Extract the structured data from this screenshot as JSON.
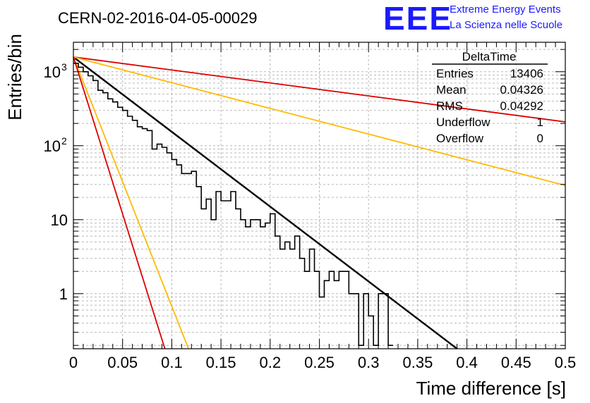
{
  "page_title": "CERN-02-2016-04-05-00029",
  "logo": {
    "mark": "EEE",
    "line1": "Extreme Energy Events",
    "line2": "La Scienza nelle Scuole",
    "color": "#1a1aff"
  },
  "stats_box": {
    "title": "DeltaTime",
    "rows": [
      {
        "label": "Entries",
        "value": "13406"
      },
      {
        "label": "Mean",
        "value": "0.04326"
      },
      {
        "label": "RMS",
        "value": "0.04292"
      },
      {
        "label": "Underflow",
        "value": "1"
      },
      {
        "label": "Overflow",
        "value": "0"
      }
    ]
  },
  "chart_data": {
    "type": "line",
    "title": "CERN-02-2016-04-05-00029",
    "xlabel": "Time difference [s]",
    "ylabel": "Entries/bin",
    "xlim": [
      0,
      0.5
    ],
    "ylim": [
      0.18,
      2500
    ],
    "y_scale": "log",
    "grid": true,
    "x_ticks": [
      "0",
      "0.05",
      "0.1",
      "0.15",
      "0.2",
      "0.25",
      "0.3",
      "0.35",
      "0.4",
      "0.45",
      "0.5"
    ],
    "y_ticks": [
      {
        "value": 1,
        "base": "1",
        "exp": ""
      },
      {
        "value": 10,
        "base": "10",
        "exp": ""
      },
      {
        "value": 100,
        "base": "10",
        "exp": "2"
      },
      {
        "value": 1000,
        "base": "10",
        "exp": "3"
      }
    ],
    "histogram": {
      "name": "DeltaTime",
      "color": "#000000",
      "bin_width": 0.005,
      "x_start": 0,
      "values": [
        1300,
        1150,
        1000,
        880,
        760,
        560,
        520,
        430,
        390,
        330,
        300,
        250,
        220,
        180,
        170,
        160,
        90,
        105,
        95,
        80,
        65,
        55,
        42,
        42,
        45,
        28,
        14,
        19,
        10,
        24,
        18,
        18,
        24,
        14,
        10,
        8,
        10,
        10,
        8,
        9,
        12,
        6,
        4,
        5,
        4,
        6,
        3,
        2,
        4,
        2,
        0.9,
        1.5,
        2,
        1.5,
        2,
        2,
        1,
        1,
        0.2,
        1,
        0.5,
        0.2,
        1,
        1,
        0.2
      ]
    },
    "fit_lines": [
      {
        "color": "#000000",
        "points": [
          [
            0,
            1580
          ],
          [
            0.39,
            0.18
          ]
        ]
      },
      {
        "color": "#dd0000",
        "points": [
          [
            0,
            1580
          ],
          [
            0.5,
            210
          ]
        ]
      },
      {
        "color": "#ffbb00",
        "points": [
          [
            0,
            1580
          ],
          [
            0.5,
            29
          ]
        ]
      },
      {
        "color": "#ffbb00",
        "points": [
          [
            0,
            1580
          ],
          [
            0.117,
            0.18
          ]
        ]
      },
      {
        "color": "#dd0000",
        "points": [
          [
            0,
            1580
          ],
          [
            0.093,
            0.18
          ]
        ]
      }
    ]
  }
}
